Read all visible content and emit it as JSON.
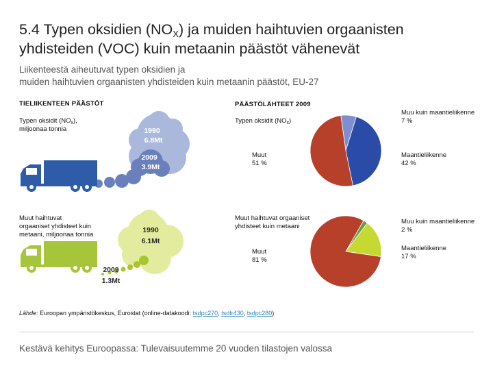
{
  "title": {
    "prefix": "5.4 Typen oksidien (NO",
    "sub": "X",
    "suffix": ") ja muiden haihtuvien orgaanisten",
    "line2": "yhdisteiden (VOC) kuin metaanin päästöt vähenevät"
  },
  "subtitle": {
    "line1": "Liikenteestä aiheutuvat typen oksidien ja",
    "line2": "muiden haihtuvien orgaanisten yhdisteiden kuin metaanin päästöt, EU-27"
  },
  "left_heading": "TIELIIKENTEEN PÄÄSTÖT",
  "right_heading": "PÄÄSTÖLÄHTEET 2009",
  "nox_left": {
    "line1_prefix": "Typen oksidit (NO",
    "line1_sub": "x",
    "line1_suffix": "),",
    "line2": "miljoonaa tonnia"
  },
  "voc_left": {
    "line1": "Muut haihtuvat",
    "line2": "orgaaniset yhdisteet kuin",
    "line3": "metaani, miljoonaa tonnia"
  },
  "nox_right_label": {
    "prefix": "Typen oksidit (NO",
    "sub": "x",
    "suffix": ")"
  },
  "voc_right_label": {
    "line1": "Muut haihtuvat orgaaniset",
    "line2": "yhdisteet kuin metaani"
  },
  "bubbles": {
    "nox_1990": {
      "year": "1990",
      "value": "6.8Mt"
    },
    "nox_2009": {
      "year": "2009",
      "value": "3.9Mt"
    },
    "voc_1990": {
      "year": "1990",
      "value": "6.1Mt"
    },
    "voc_2009": {
      "year": "2009",
      "value": "1.3Mt"
    }
  },
  "colors": {
    "muut": "#b6402a",
    "maantie_nox": "#2a4ba8",
    "muu_kuin_maantie_nox": "#7e8fcf",
    "maantie_voc": "#c6d832",
    "muu_kuin_maantie_voc": "#6a9a46",
    "nox_cloud": "#6a80bd",
    "nox_cloud_light": "#aab8db",
    "voc_cloud": "#a9c42c",
    "voc_cloud_light": "#e3ec9e",
    "truck_blue": "#2e5ca9",
    "truck_green": "#a7c53a"
  },
  "chart_data": [
    {
      "type": "pie",
      "title": "Typen oksidit (NOx)",
      "slices": [
        {
          "name": "Muut",
          "value": 51,
          "label": "Muut",
          "pct_label": "51 %"
        },
        {
          "name": "Maantieliikenne",
          "value": 42,
          "label": "Maantieliikenne",
          "pct_label": "42 %"
        },
        {
          "name": "Muu kuin maantieliikenne",
          "value": 7,
          "label": "Muu kuin maantieliikenne",
          "pct_label": "7 %"
        }
      ]
    },
    {
      "type": "pie",
      "title": "Muut haihtuvat orgaaniset yhdisteet kuin metaani",
      "slices": [
        {
          "name": "Muut",
          "value": 81,
          "label": "Muut",
          "pct_label": "81 %"
        },
        {
          "name": "Maantieliikenne",
          "value": 17,
          "label": "Maantieliikenne",
          "pct_label": "17 %"
        },
        {
          "name": "Muu kuin maantieliikenne",
          "value": 2,
          "label": "Muu kuin maantieliikenne",
          "pct_label": "2 %"
        }
      ]
    }
  ],
  "source": {
    "lahde": "Lähde",
    "text": ": Euroopan ympäristökeskus, Eurostat (online-datakoodi: ",
    "link1": "tsdpc270",
    "sep1": ", ",
    "link2": "tsdtr430",
    "sep2": ", ",
    "link3": "tsdpc280",
    "end": ")"
  },
  "footer": "Kestävä kehitys Euroopassa: Tulevaisuutemme 20 vuoden tilastojen valossa"
}
